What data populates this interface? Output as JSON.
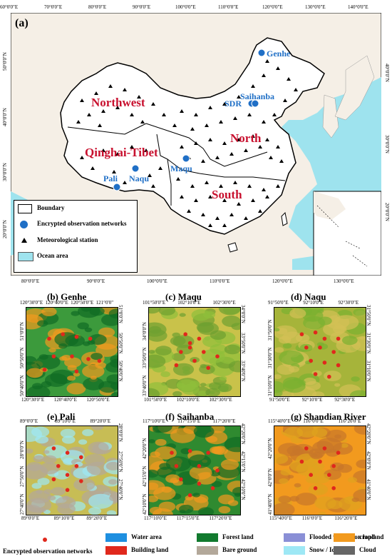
{
  "main_map": {
    "panel_label": "(a)",
    "top_lon_ticks": [
      "60°0'0\"E",
      "70°0'0\"E",
      "80°0'0\"E",
      "90°0'0\"E",
      "100°0'0\"E",
      "110°0'0\"E",
      "120°0'0\"E",
      "130°0'0\"E",
      "140°0'0\"E"
    ],
    "bottom_lon_ticks": [
      "80°0'0\"E",
      "90°0'0\"E",
      "100°0'0\"E",
      "110°0'0\"E",
      "120°0'0\"E",
      "130°0'0\"E"
    ],
    "left_lat_ticks": [
      "50°0'0\"N",
      "40°0'0\"N",
      "30°0'0\"N",
      "20°0'0\"N"
    ],
    "right_lat_ticks": [
      "40°0'0\"N",
      "30°0'0\"N",
      "20°0'0\"N"
    ],
    "regions": {
      "northwest": "Northwest",
      "qinghai_tibet": "Qinghai-Tibet",
      "north": "North",
      "south": "South"
    },
    "stations": {
      "genhe": "Genhe",
      "saihanba": "Saihanba",
      "sdr": "SDR",
      "maqu": "Maqu",
      "naqu": "Naqu",
      "pali": "Pali"
    },
    "legend": {
      "boundary": "Boundary",
      "networks": "Encrypted observation networks",
      "met_station": "Meteorological station",
      "ocean": "Ocean area"
    }
  },
  "panels": [
    {
      "key": "b",
      "label": "(b)",
      "name": "Genhe",
      "top": [
        "120°30'0\"E",
        "120°40'0\"E",
        "120°50'0\"E",
        "121°0'0\""
      ],
      "bottom": [
        "120°30'0\"E",
        "120°40'0\"E",
        "120°50'0\"E"
      ],
      "left": [
        "51°0'0\"N",
        "50°50'0\"N",
        "50°40'0\"N"
      ],
      "right": [
        "51°0'0\"N",
        "50°50'0\"N",
        "50°40'0\"N"
      ]
    },
    {
      "key": "c",
      "label": "(c)",
      "name": "Maqu",
      "top": [
        "101°50'0\"E",
        "102°10'0\"E",
        "102°30'0\"E"
      ],
      "bottom": [
        "101°50'0\"E",
        "102°10'0\"E",
        "102°30'0\"E"
      ],
      "left": [
        "34°0'0\"N",
        "33°50'0\"N",
        "33°40'0\"N"
      ],
      "right": [
        "34°0'0\"N",
        "33°50'0\"N",
        "33°40'0\"N"
      ]
    },
    {
      "key": "d",
      "label": "(d)",
      "name": "Naqu",
      "top": [
        "91°50'0\"E",
        "92°10'0\"E",
        "92°30'0\"E"
      ],
      "bottom": [
        "91°50'0\"E",
        "92°10'0\"E",
        "92°30'0\"E"
      ],
      "left": [
        "31°50'0\"N",
        "31°30'0\"N",
        "31°10'0\"N"
      ],
      "right": [
        "31°50'0\"N",
        "31°30'0\"N",
        "31°10'0\"N"
      ]
    },
    {
      "key": "e",
      "label": "(e)",
      "name": "Pali",
      "top": [
        "89°0'0\"E",
        "89°10'0\"E",
        "89°20'0\"E"
      ],
      "bottom": [
        "89°0'0\"E",
        "89°10'0\"E",
        "89°20'0\"E"
      ],
      "left": [
        "28°0'0\"N",
        "27°50'0\"N",
        "27°40'0\"N"
      ],
      "right": [
        "28°0'0\"N",
        "27°50'0\"N",
        "27°40'0\"N"
      ]
    },
    {
      "key": "f",
      "label": "(f)",
      "name": "Saihanba",
      "top": [
        "117°10'0\"E",
        "117°15'0\"E",
        "117°20'0\"E"
      ],
      "bottom": [
        "117°10'0\"E",
        "117°15'0\"E",
        "117°20'0\"E"
      ],
      "left": [
        "42°20'0\"N",
        "42°15'0\"N",
        "42°10'0\"N"
      ],
      "right": [
        "42°20'0\"N",
        "42°15'0\"N",
        "42°10'0\"N"
      ]
    },
    {
      "key": "g",
      "label": "(g)",
      "name": "Shandian River",
      "top": [
        "115°40'0\"E",
        "116°0'0\"E",
        "116°20'0\"E"
      ],
      "bottom": [
        "115°40'0\"E",
        "116°0'0\"E",
        "116°20'0\"E"
      ],
      "left": [
        "42°20'0\"N",
        "42°0'0\"N",
        "41°40'0\"N"
      ],
      "right": [
        "42°20'0\"N",
        "42°0'0\"N",
        "41°40'0\"N"
      ]
    }
  ],
  "bottom_legend": {
    "networks": "Encrypted observation networks",
    "items": [
      {
        "label": "Water area",
        "color": "#1e8fe0"
      },
      {
        "label": "Forest land",
        "color": "#117a2e"
      },
      {
        "label": "Flooded vegetation land",
        "color": "#8a8fd6"
      },
      {
        "label": "cropland",
        "color": "#f29a1e"
      },
      {
        "label": "Building land",
        "color": "#e0281c"
      },
      {
        "label": "Bare ground",
        "color": "#b3a89a"
      },
      {
        "label": "Snow / Ice",
        "color": "#9ee8f5"
      },
      {
        "label": "Cloud",
        "color": "#666666"
      }
    ]
  }
}
